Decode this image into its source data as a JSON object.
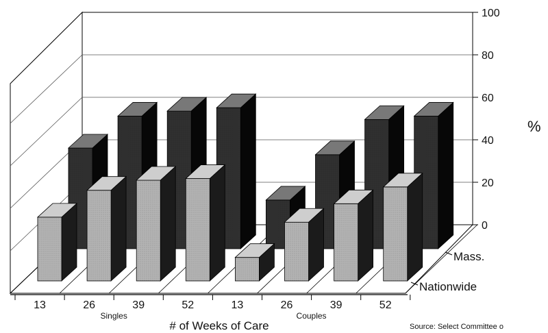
{
  "chart_data": {
    "type": "bar",
    "style": "3d-grouped",
    "groups": [
      {
        "label": "Singles",
        "categories": [
          "13",
          "26",
          "39",
          "52"
        ]
      },
      {
        "label": "Couples",
        "categories": [
          "13",
          "26",
          "39",
          "52"
        ]
      }
    ],
    "categories": [
      "13",
      "26",
      "39",
      "52",
      "13",
      "26",
      "39",
      "52"
    ],
    "series": [
      {
        "name": "Nationwide",
        "values": [
          38,
          54,
          60,
          61,
          14,
          35,
          46,
          56
        ],
        "color": "#b3b3b3"
      },
      {
        "name": "Mass.",
        "values": [
          60,
          79,
          82,
          84,
          29,
          56,
          77,
          79
        ],
        "color": "#303030"
      }
    ],
    "xlabel": "# of Weeks of Care",
    "ylabel": "%",
    "ylim": [
      0,
      100
    ],
    "yticks": [
      0,
      20,
      40,
      60,
      80,
      100
    ],
    "grid": true
  },
  "source": "Source: Select Committee o"
}
